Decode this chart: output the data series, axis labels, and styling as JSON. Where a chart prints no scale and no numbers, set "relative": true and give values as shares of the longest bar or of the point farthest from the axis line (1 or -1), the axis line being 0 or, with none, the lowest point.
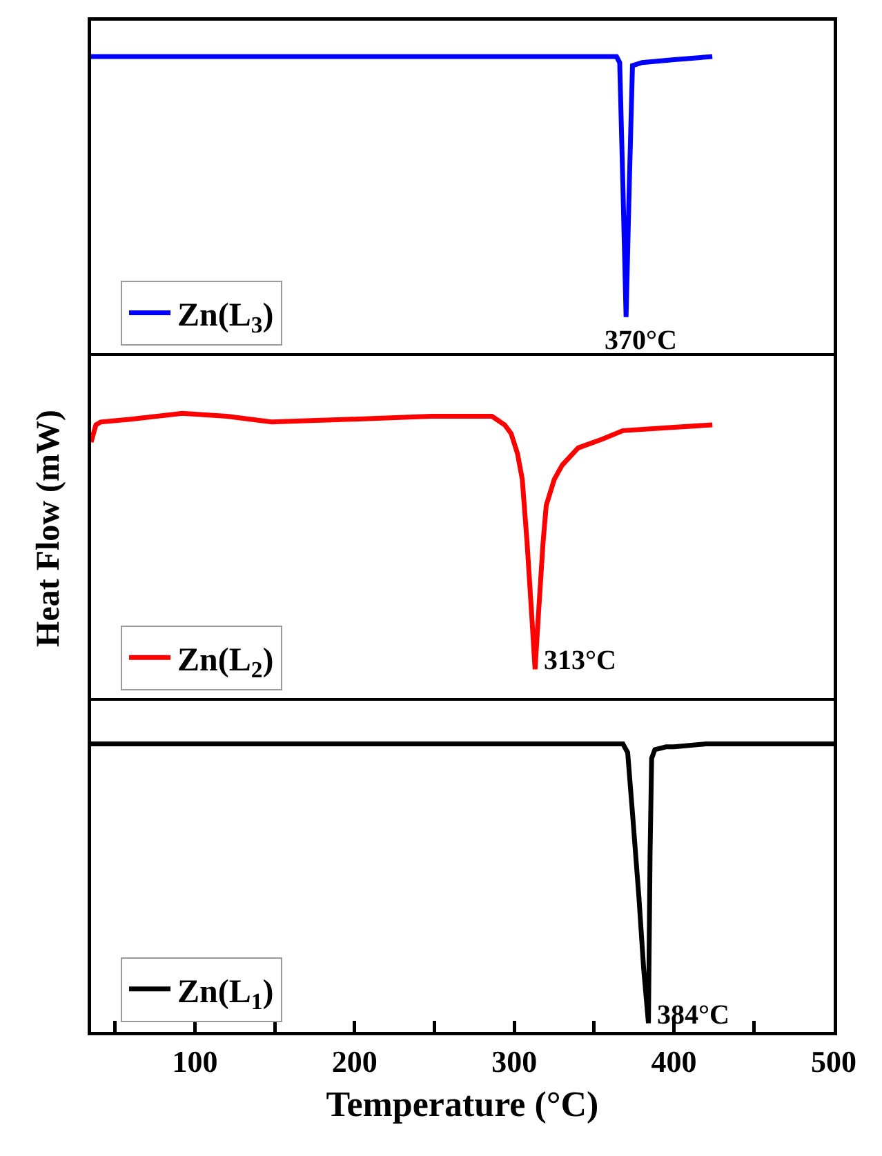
{
  "chart_data": [
    {
      "type": "line",
      "relative": true,
      "xlim": [
        35,
        500
      ],
      "tick_labels": false,
      "legend": "bottom left",
      "annotations": [
        {
          "text": "370°C",
          "x": 370,
          "y": 0.13
        }
      ],
      "series": [
        {
          "name": "Zn(L$_{3}$)",
          "color": "#0000ff",
          "x": [
            35,
            100,
            200,
            300,
            338,
            355,
            364,
            366,
            368,
            370,
            372,
            374,
            380,
            400,
            424
          ],
          "values": [
            1,
            1,
            1,
            1,
            1,
            1,
            1,
            0.98,
            0.57,
            0.13,
            0.57,
            0.97,
            0.98,
            0.99,
            1
          ]
        }
      ]
    },
    {
      "type": "line",
      "relative": true,
      "xlim": [
        35,
        500
      ],
      "tick_labels": false,
      "legend": "bottom left",
      "ylabel": "Heat Flow (mW)",
      "annotations": [
        {
          "text": "313°C",
          "x": 313,
          "y": 0.11
        }
      ],
      "series": [
        {
          "name": "Zn(L$_{2}$)",
          "color": "#ff0000",
          "x": [
            35,
            38,
            41,
            60,
            92,
            120,
            148,
            200,
            248,
            286,
            294,
            298,
            302,
            305,
            308,
            311,
            313,
            315,
            318,
            320,
            325,
            330,
            340,
            355,
            368,
            395,
            424
          ],
          "values": [
            0.9,
            0.96,
            0.97,
            0.98,
            1,
            0.99,
            0.97,
            0.98,
            0.99,
            0.99,
            0.96,
            0.93,
            0.86,
            0.77,
            0.55,
            0.29,
            0.11,
            0.29,
            0.55,
            0.68,
            0.77,
            0.82,
            0.88,
            0.91,
            0.94,
            0.95,
            0.96
          ]
        }
      ]
    },
    {
      "type": "line",
      "relative": true,
      "xlim": [
        35,
        500
      ],
      "tick_labels": "x",
      "legend": "bottom left",
      "xlabel": "Temperature (°C)",
      "annotations": [
        {
          "text": "384°C",
          "x": 384,
          "y": 0.03
        }
      ],
      "xticks": [
        {
          "value": 50,
          "label": null
        },
        100,
        {
          "value": 150,
          "label": null
        },
        200,
        {
          "value": 250,
          "label": null
        },
        300,
        {
          "value": 350,
          "label": null
        },
        400,
        {
          "value": 450,
          "label": null
        },
        500
      ],
      "series": [
        {
          "name": "Zn(L$_{1}$)",
          "color": "#000000",
          "x": [
            35,
            100,
            200,
            300,
            368,
            371,
            374,
            378,
            381,
            384,
            385,
            386,
            388,
            395,
            400,
            420,
            450,
            500
          ],
          "values": [
            1,
            1,
            1,
            1,
            1,
            0.97,
            0.76,
            0.47,
            0.22,
            0.03,
            0.61,
            0.95,
            0.98,
            0.99,
            0.99,
            1,
            1,
            1
          ]
        }
      ]
    }
  ]
}
